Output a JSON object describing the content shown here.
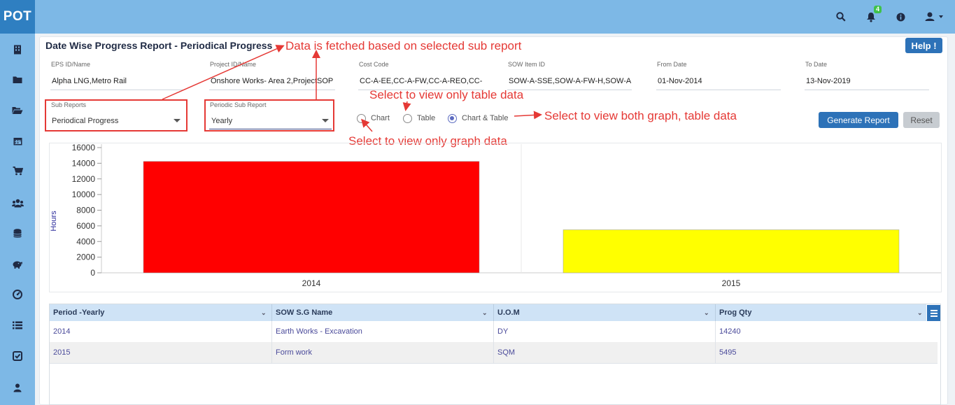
{
  "app": {
    "logo": "POT",
    "notifications_count": "4"
  },
  "page": {
    "title": "Date Wise Progress Report - Periodical Progress",
    "help_label": "Help !"
  },
  "filters": [
    {
      "label": "EPS ID/Name",
      "value": "Alpha LNG,Metro Rail"
    },
    {
      "label": "Project ID/Name",
      "value": "Onshore  Works- Area 2,ProjectSOP"
    },
    {
      "label": "Cost Code",
      "value": "CC-A-EE,CC-A-FW,CC-A-REO,CC-"
    },
    {
      "label": "SOW Item ID",
      "value": "SOW-A-SSE,SOW-A-FW-H,SOW-A"
    },
    {
      "label": "From Date",
      "value": "01-Nov-2014"
    },
    {
      "label": "To Date",
      "value": "13-Nov-2019"
    }
  ],
  "sub_reports": {
    "label": "Sub Reports",
    "value": "Periodical Progress"
  },
  "periodic_sub_report": {
    "label": "Periodic Sub Report",
    "value": "Yearly"
  },
  "view_options": [
    {
      "label": "Chart",
      "checked": false
    },
    {
      "label": "Table",
      "checked": false
    },
    {
      "label": "Chart & Table",
      "checked": true
    }
  ],
  "buttons": {
    "generate": "Generate Report",
    "reset": "Reset"
  },
  "annotations": {
    "fetched": "Data is fetched based on selected sub report",
    "table_only": "Select to view only table data",
    "both": "Select to view both graph, table data",
    "graph_only": "Select to view only graph data"
  },
  "chart_data": {
    "type": "bar",
    "categories": [
      "2014",
      "2015"
    ],
    "values": [
      14240,
      5495
    ],
    "colors": [
      "#ff0000",
      "#ffff00"
    ],
    "ylabel": "Hours",
    "ylim": [
      0,
      16000
    ],
    "yticks": [
      0,
      2000,
      4000,
      6000,
      8000,
      10000,
      12000,
      14000,
      16000
    ],
    "grid": true
  },
  "table": {
    "columns": [
      "Period -Yearly",
      "SOW S.G Name",
      "U.O.M",
      "Prog Qty"
    ],
    "rows": [
      [
        "2014",
        "Earth Works - Excavation",
        "DY",
        "14240"
      ],
      [
        "2015",
        "Form work",
        "SQM",
        "5495"
      ]
    ]
  }
}
